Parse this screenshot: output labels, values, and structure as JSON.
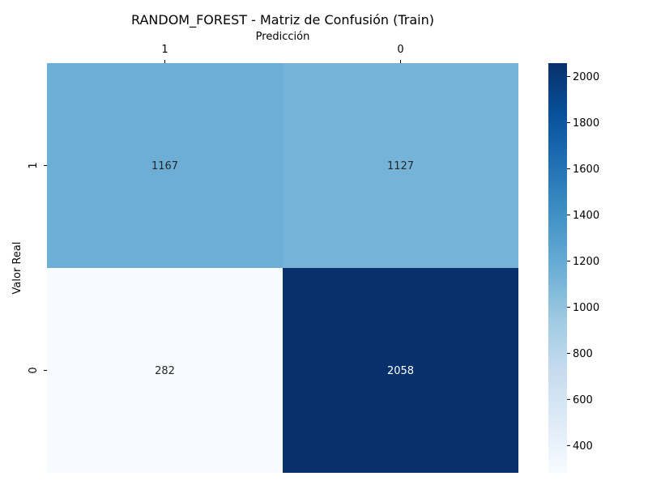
{
  "chart_data": {
    "type": "heatmap",
    "title": "RANDOM_FOREST - Matriz de Confusión (Train)",
    "xlabel": "Predicción",
    "ylabel": "Valor Real",
    "x_categories": [
      "1",
      "0"
    ],
    "y_categories": [
      "1",
      "0"
    ],
    "matrix": [
      [
        1167,
        1127
      ],
      [
        282,
        2058
      ]
    ],
    "colormap": "Blues",
    "colorbar": {
      "range": [
        282,
        2058
      ],
      "ticks": [
        400,
        600,
        800,
        1000,
        1200,
        1400,
        1600,
        1800,
        2000
      ]
    },
    "colors": {
      "low": "#f7fbff",
      "high": "#08306b",
      "annot_light": "#ffffff",
      "annot_dark": "#262626"
    }
  }
}
